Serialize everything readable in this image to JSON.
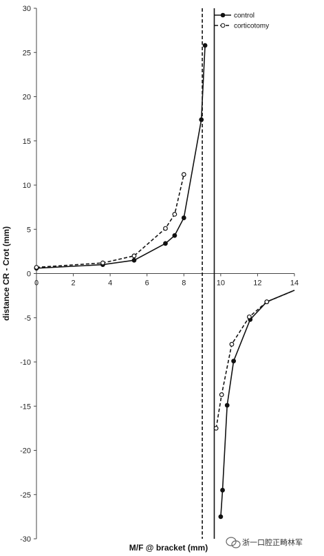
{
  "chart_data": {
    "type": "line",
    "xlabel": "M/F @ bracket (mm)",
    "ylabel": "distance CR - Crot (mm)",
    "xlim": [
      0,
      14
    ],
    "ylim": [
      -30,
      30
    ],
    "xticks": [
      "0",
      "2",
      "4",
      "6",
      "8",
      "10",
      "12",
      "14"
    ],
    "yticks": [
      "30",
      "25",
      "20",
      "15",
      "10",
      "5",
      "0",
      "-5",
      "-10",
      "-15",
      "-20",
      "-25",
      "-30"
    ],
    "grid": false,
    "legend_position": "top-right",
    "series": [
      {
        "name": "control",
        "style": "solid",
        "marker": "filled-circle",
        "color": "#111111",
        "asymptote_x": 9.65,
        "left_branch": [
          {
            "x": 0,
            "y": 0.6
          },
          {
            "x": 3.6,
            "y": 1.0
          },
          {
            "x": 5.3,
            "y": 1.5
          },
          {
            "x": 7.0,
            "y": 3.4
          },
          {
            "x": 7.5,
            "y": 4.3
          },
          {
            "x": 8.0,
            "y": 6.3
          },
          {
            "x": 8.95,
            "y": 17.4
          },
          {
            "x": 9.15,
            "y": 25.8
          }
        ],
        "right_branch": [
          {
            "x": 10.0,
            "y": -27.5
          },
          {
            "x": 10.1,
            "y": -24.5
          },
          {
            "x": 10.35,
            "y": -14.9
          },
          {
            "x": 10.7,
            "y": -9.9
          },
          {
            "x": 11.6,
            "y": -5.2
          },
          {
            "x": 12.5,
            "y": -3.2
          },
          {
            "x": 14.0,
            "y": -1.9
          }
        ]
      },
      {
        "name": "corticotomy",
        "style": "dashed",
        "marker": "open-circle",
        "color": "#111111",
        "asymptote_x": 9.0,
        "left_branch": [
          {
            "x": 0,
            "y": 0.7
          },
          {
            "x": 3.6,
            "y": 1.2
          },
          {
            "x": 5.3,
            "y": 2.0
          },
          {
            "x": 7.0,
            "y": 5.1
          },
          {
            "x": 7.5,
            "y": 6.7
          },
          {
            "x": 8.0,
            "y": 11.2
          }
        ],
        "right_branch": [
          {
            "x": 9.75,
            "y": -17.5
          },
          {
            "x": 10.05,
            "y": -13.7
          },
          {
            "x": 10.6,
            "y": -8.0
          },
          {
            "x": 11.55,
            "y": -4.9
          },
          {
            "x": 12.5,
            "y": -3.2
          },
          {
            "x": 14.0,
            "y": -1.9
          }
        ]
      }
    ]
  },
  "watermark": {
    "text": "浙一口腔正畸林军",
    "icon": "wechat-icon"
  }
}
